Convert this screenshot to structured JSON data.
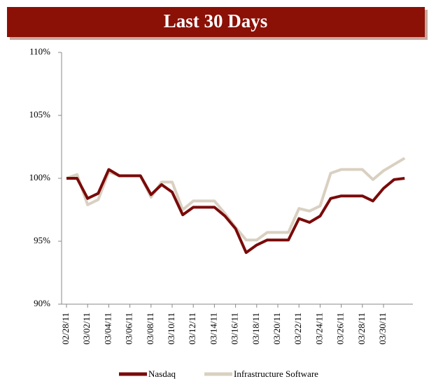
{
  "chart_data": {
    "type": "line",
    "title": "Last 30 Days",
    "categories": [
      "02/28/11",
      null,
      "03/02/11",
      null,
      "03/04/11",
      null,
      "03/06/11",
      null,
      "03/08/11",
      null,
      "03/10/11",
      null,
      "03/12/11",
      null,
      "03/14/11",
      null,
      "03/16/11",
      null,
      "03/18/11",
      null,
      "03/20/11",
      null,
      "03/22/11",
      null,
      "03/24/11",
      null,
      "03/26/11",
      null,
      "03/28/11",
      null,
      "03/30/11",
      null,
      null
    ],
    "series": [
      {
        "name": "Nasdaq",
        "color": "#7a0a0a",
        "values": [
          100.0,
          100.0,
          98.4,
          98.8,
          100.7,
          100.2,
          100.2,
          100.2,
          98.7,
          99.5,
          98.9,
          97.1,
          97.7,
          97.7,
          97.7,
          97.0,
          96.0,
          94.1,
          94.7,
          95.1,
          95.1,
          95.1,
          96.8,
          96.5,
          97.0,
          98.4,
          98.6,
          98.6,
          98.6,
          98.2,
          99.2,
          99.9,
          100.0
        ]
      },
      {
        "name": "Infrastructure Software",
        "color": "#d9d0c1",
        "values": [
          100.0,
          100.3,
          97.9,
          98.3,
          100.5,
          100.2,
          100.2,
          100.2,
          98.5,
          99.7,
          99.7,
          97.5,
          98.2,
          98.2,
          98.2,
          97.2,
          96.1,
          95.1,
          95.1,
          95.7,
          95.7,
          95.7,
          97.6,
          97.4,
          97.8,
          100.4,
          100.7,
          100.7,
          100.7,
          99.9,
          100.6,
          101.1,
          101.6
        ]
      }
    ],
    "ylim": [
      90,
      110
    ],
    "yticks": [
      {
        "value": 90,
        "label": "90%"
      },
      {
        "value": 95,
        "label": "95%"
      },
      {
        "value": 100,
        "label": "100%"
      },
      {
        "value": 105,
        "label": "105%"
      },
      {
        "value": 110,
        "label": "110%"
      }
    ],
    "grid": false,
    "legend": "bottom"
  }
}
